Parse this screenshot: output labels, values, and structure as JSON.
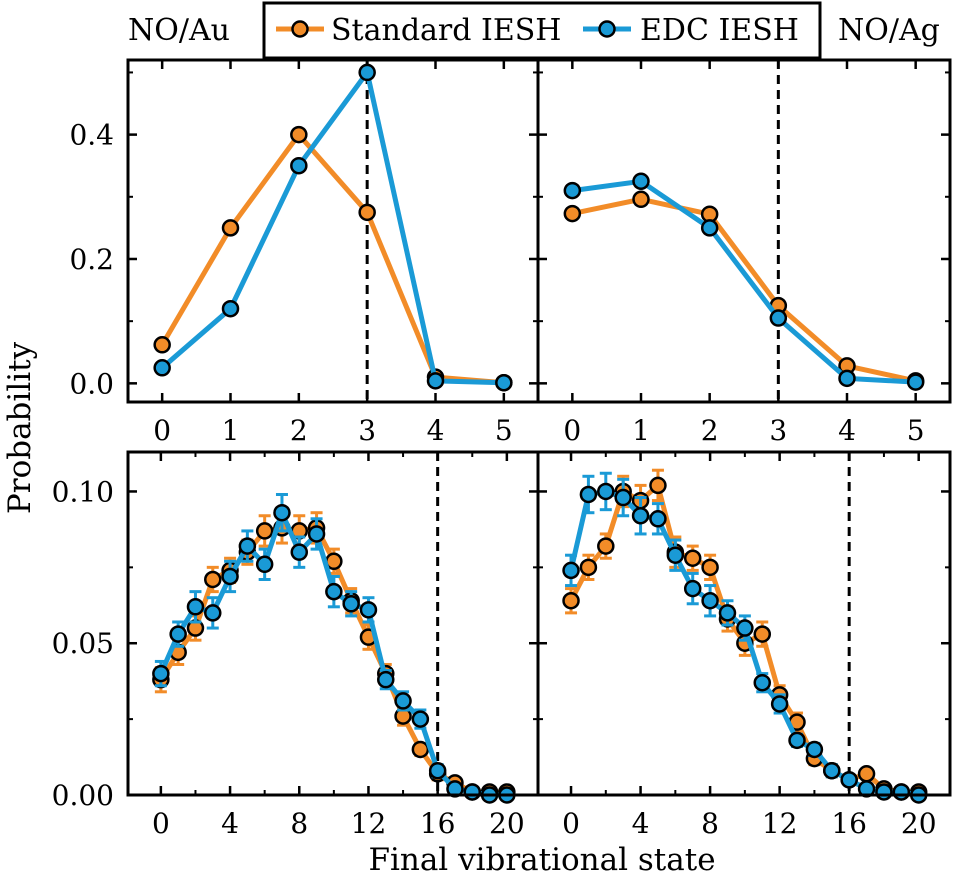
{
  "figure": {
    "ylabel": "Probability",
    "xlabel": "Final vibrational state",
    "left_label": "NO/Au",
    "right_label": "NO/Ag"
  },
  "legend": [
    {
      "label": "Standard IESH",
      "color": "#F28C28"
    },
    {
      "label": "EDC IESH",
      "color": "#1A9AD6"
    }
  ],
  "colors": {
    "standard": "#F28C28",
    "edc": "#1A9AD6",
    "marker_edge": "#000000",
    "vline": "#000000"
  },
  "chart_data": [
    {
      "type": "line",
      "panel": "top-left",
      "x": [
        0,
        1,
        2,
        3,
        4,
        5
      ],
      "xticks": [
        "0",
        "1",
        "2",
        "3",
        "4",
        "5"
      ],
      "xlim": [
        -0.5,
        5.5
      ],
      "yticks": [
        "0.0",
        "0.2",
        "0.4"
      ],
      "ylim": [
        -0.03,
        0.52
      ],
      "vline_x": 3,
      "series": [
        {
          "name": "Standard IESH",
          "values": [
            0.062,
            0.25,
            0.4,
            0.275,
            0.01,
            0.001
          ]
        },
        {
          "name": "EDC IESH",
          "values": [
            0.025,
            0.12,
            0.35,
            0.5,
            0.004,
            0.001
          ]
        }
      ]
    },
    {
      "type": "line",
      "panel": "top-right",
      "x": [
        0,
        1,
        2,
        3,
        4,
        5
      ],
      "xticks": [
        "0",
        "1",
        "2",
        "3",
        "4",
        "5"
      ],
      "xlim": [
        -0.5,
        5.5
      ],
      "yticks": [
        "",
        "",
        ""
      ],
      "ylim": [
        -0.03,
        0.52
      ],
      "vline_x": 3,
      "series": [
        {
          "name": "Standard IESH",
          "values": [
            0.273,
            0.296,
            0.272,
            0.125,
            0.028,
            0.004
          ]
        },
        {
          "name": "EDC IESH",
          "values": [
            0.31,
            0.325,
            0.25,
            0.105,
            0.008,
            0.002
          ]
        }
      ]
    },
    {
      "type": "line",
      "panel": "bottom-left",
      "x": [
        0,
        1,
        2,
        3,
        4,
        5,
        6,
        7,
        8,
        9,
        10,
        11,
        12,
        13,
        14,
        15,
        16,
        17,
        18,
        19,
        20
      ],
      "xticks": [
        "0",
        "4",
        "8",
        "12",
        "16",
        "20"
      ],
      "xtick_values": [
        0,
        4,
        8,
        12,
        16,
        20
      ],
      "xlim": [
        -1.9,
        21.8
      ],
      "yticks": [
        "0.00",
        "0.05",
        "0.10"
      ],
      "ytick_values": [
        0.0,
        0.05,
        0.1
      ],
      "ylim": [
        0.0,
        0.113
      ],
      "vline_x": 16,
      "series": [
        {
          "name": "Standard IESH",
          "values": [
            0.038,
            0.047,
            0.055,
            0.071,
            0.074,
            0.08,
            0.087,
            0.088,
            0.087,
            0.088,
            0.077,
            0.064,
            0.052,
            0.04,
            0.026,
            0.015,
            0.007,
            0.004,
            0.001,
            0.001,
            0.001
          ],
          "errors": [
            0.004,
            0.004,
            0.004,
            0.004,
            0.004,
            0.004,
            0.005,
            0.005,
            0.005,
            0.005,
            0.004,
            0.004,
            0.004,
            0.003,
            0.003,
            0.002,
            0.002,
            0.001,
            0.001,
            0.001,
            0.001
          ]
        },
        {
          "name": "EDC IESH",
          "values": [
            0.04,
            0.053,
            0.062,
            0.06,
            0.072,
            0.082,
            0.076,
            0.093,
            0.08,
            0.086,
            0.067,
            0.063,
            0.061,
            0.038,
            0.031,
            0.025,
            0.008,
            0.002,
            0.001,
            0.0,
            0.0
          ],
          "errors": [
            0.004,
            0.004,
            0.005,
            0.005,
            0.005,
            0.005,
            0.005,
            0.006,
            0.005,
            0.005,
            0.005,
            0.004,
            0.004,
            0.003,
            0.003,
            0.003,
            0.002,
            0.001,
            0.001,
            0.001,
            0.001
          ]
        }
      ]
    },
    {
      "type": "line",
      "panel": "bottom-right",
      "x": [
        0,
        1,
        2,
        3,
        4,
        5,
        6,
        7,
        8,
        9,
        10,
        11,
        12,
        13,
        14,
        15,
        16,
        17,
        18,
        19,
        20
      ],
      "xticks": [
        "0",
        "4",
        "8",
        "12",
        "16",
        "20"
      ],
      "xtick_values": [
        0,
        4,
        8,
        12,
        16,
        20
      ],
      "xlim": [
        -1.9,
        21.8
      ],
      "yticks": [
        "",
        "",
        ""
      ],
      "ytick_values": [
        0.0,
        0.05,
        0.1
      ],
      "ylim": [
        0.0,
        0.113
      ],
      "vline_x": 16,
      "series": [
        {
          "name": "Standard IESH",
          "values": [
            0.064,
            0.075,
            0.082,
            0.1,
            0.097,
            0.102,
            0.08,
            0.078,
            0.075,
            0.058,
            0.05,
            0.053,
            0.033,
            0.024,
            0.012,
            0.008,
            0.005,
            0.007,
            0.002,
            0.001,
            0.001
          ],
          "errors": [
            0.004,
            0.004,
            0.004,
            0.005,
            0.005,
            0.005,
            0.005,
            0.004,
            0.004,
            0.004,
            0.004,
            0.004,
            0.003,
            0.003,
            0.002,
            0.002,
            0.001,
            0.001,
            0.001,
            0.001,
            0.001
          ]
        },
        {
          "name": "EDC IESH",
          "values": [
            0.074,
            0.099,
            0.1,
            0.098,
            0.092,
            0.091,
            0.079,
            0.068,
            0.064,
            0.06,
            0.055,
            0.037,
            0.03,
            0.018,
            0.015,
            0.008,
            0.005,
            0.002,
            0.001,
            0.001,
            0.0
          ],
          "errors": [
            0.005,
            0.006,
            0.006,
            0.006,
            0.006,
            0.005,
            0.005,
            0.005,
            0.005,
            0.004,
            0.004,
            0.003,
            0.003,
            0.002,
            0.002,
            0.002,
            0.001,
            0.001,
            0.001,
            0.001,
            0.001
          ]
        }
      ]
    }
  ]
}
